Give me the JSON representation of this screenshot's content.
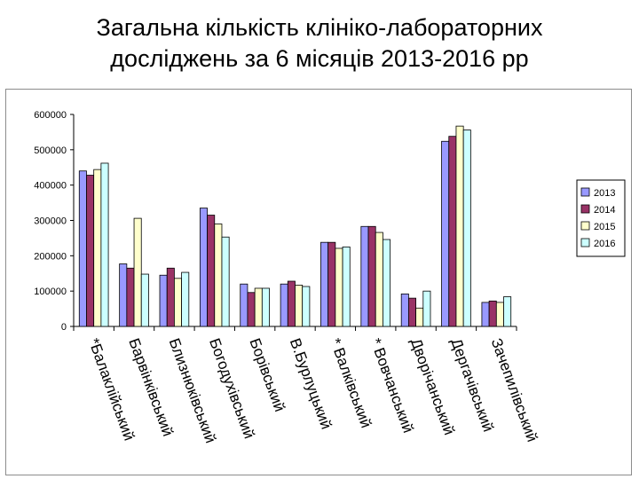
{
  "title_lines": [
    "Загальна кількість клініко-лабораторних",
    "досліджень за 6 місяців 2013-2016 рр"
  ],
  "chart_data": {
    "type": "bar",
    "title": "Загальна кількість клініко-лабораторних досліджень за 6 місяців 2013-2016 рр",
    "categories": [
      "*Балаклійський",
      "Барвінківський",
      "Близнюківський",
      "Богодухівський",
      "Борівський",
      "В.Бурлуцький",
      "* Валківський",
      "* Вовчанський",
      "Дворічанський",
      "Дергачівський",
      "Зачепилівський"
    ],
    "series": [
      {
        "name": "2013",
        "color": "#9999ff",
        "values": [
          440000,
          177000,
          145000,
          335000,
          120000,
          120000,
          238000,
          283000,
          92000,
          524000,
          68000
        ]
      },
      {
        "name": "2014",
        "color": "#993366",
        "values": [
          428000,
          165000,
          165000,
          315000,
          96000,
          128000,
          238000,
          283000,
          80000,
          538000,
          72000
        ]
      },
      {
        "name": "2015",
        "color": "#ffffcc",
        "values": [
          444000,
          306000,
          136000,
          290000,
          108000,
          117000,
          221000,
          266000,
          52000,
          567000,
          68000
        ]
      },
      {
        "name": "2016",
        "color": "#ccffff",
        "values": [
          462000,
          148000,
          153000,
          253000,
          108000,
          113000,
          225000,
          246000,
          100000,
          556000,
          84000
        ]
      }
    ],
    "ylim": [
      0,
      600000
    ],
    "yticks": [
      "0",
      "100000",
      "200000",
      "300000",
      "400000",
      "500000",
      "600000"
    ],
    "grid": false,
    "legend_position": "right"
  }
}
